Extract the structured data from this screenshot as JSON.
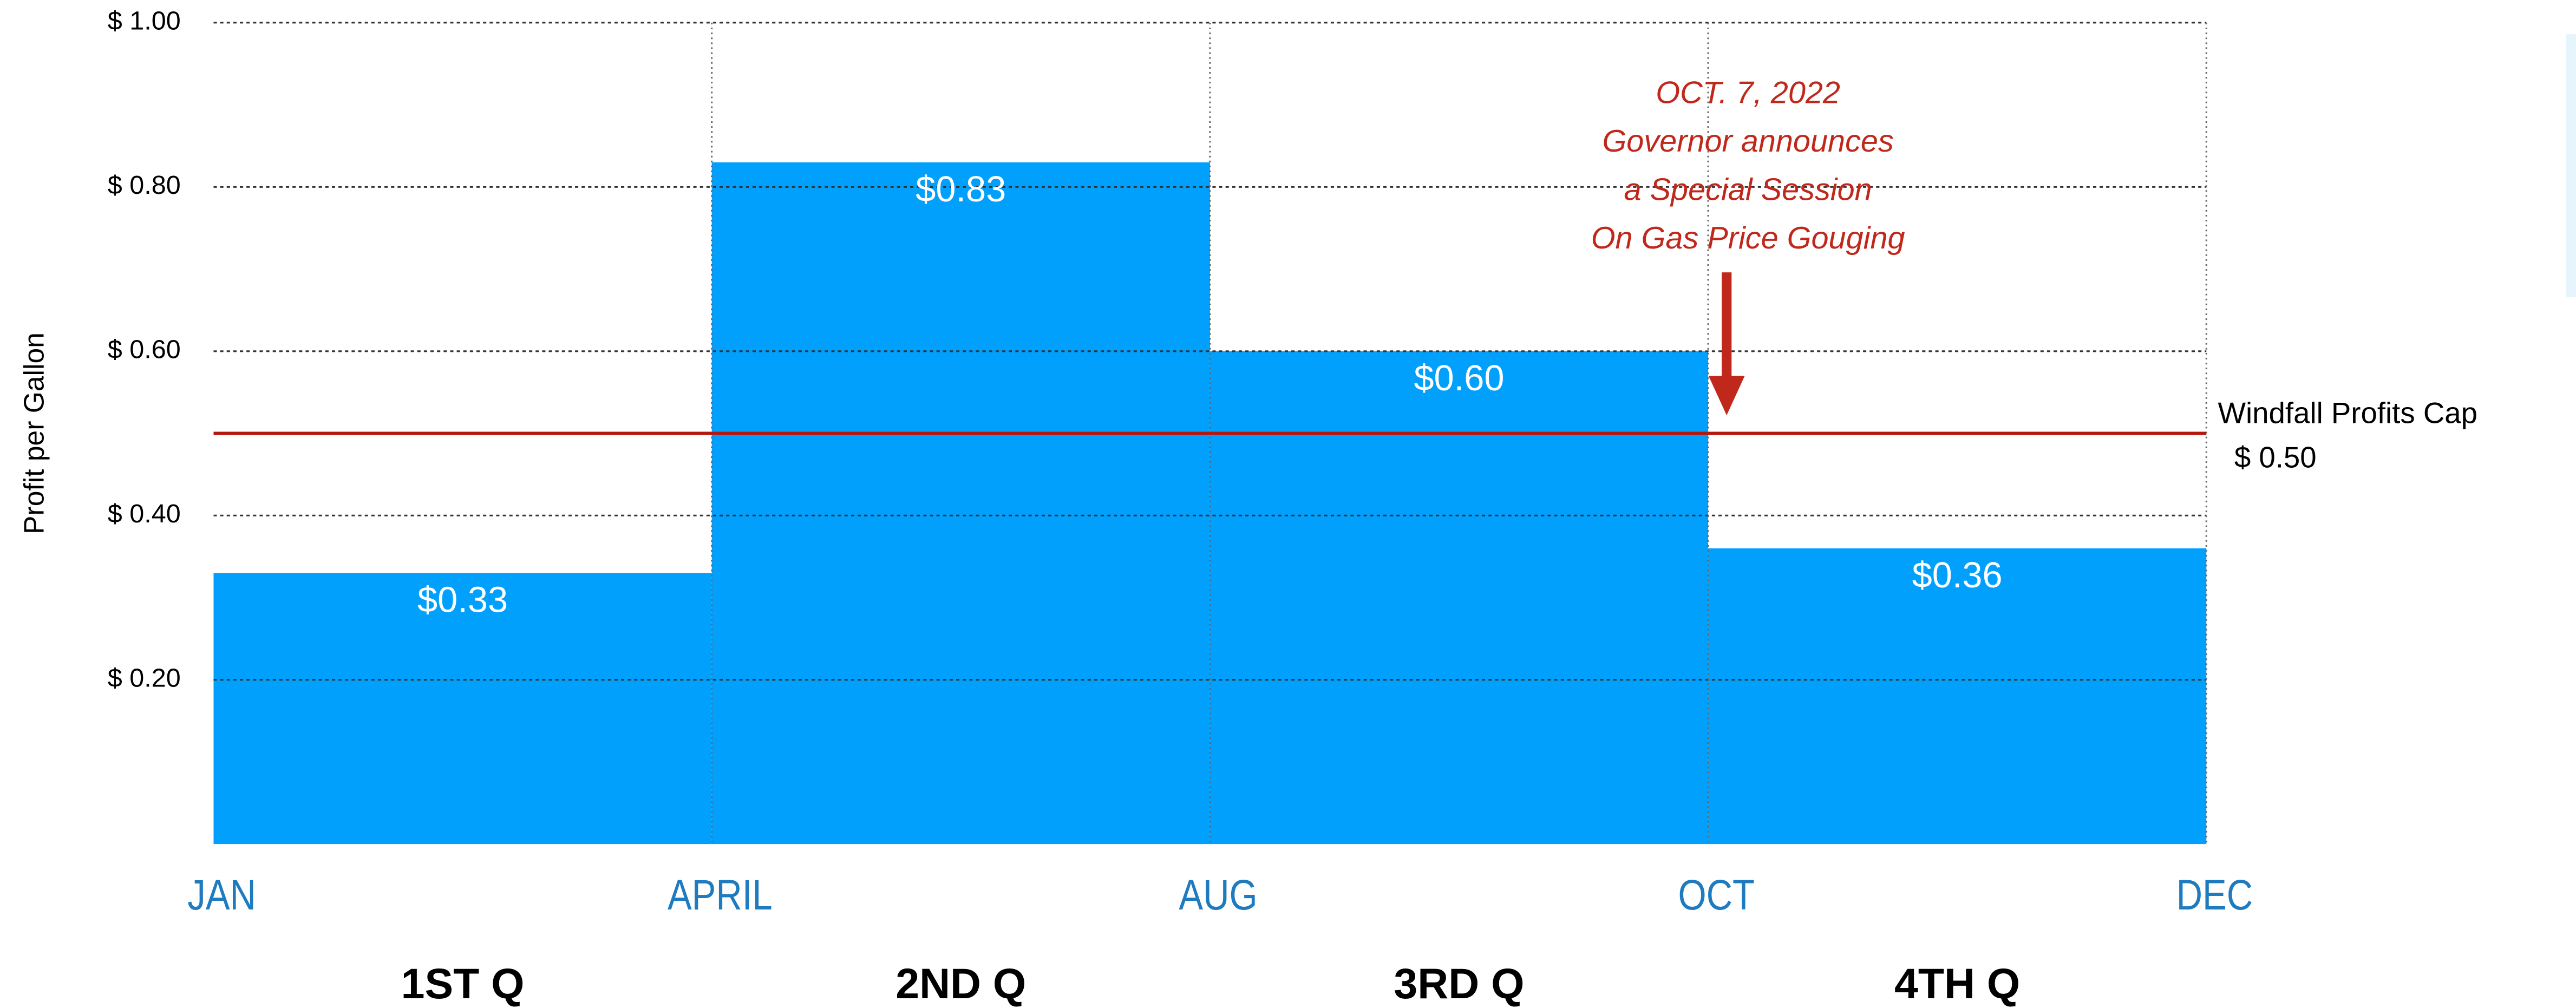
{
  "chart_data": {
    "type": "bar",
    "y_label": "Profit per Gallon",
    "categories": [
      "1ST Q",
      "2ND Q",
      "3RD Q",
      "4TH Q"
    ],
    "edge_labels": [
      "JAN",
      "APRIL",
      "AUG",
      "OCT",
      "DEC"
    ],
    "values": [
      0.33,
      0.83,
      0.6,
      0.36
    ],
    "value_labels": [
      "$0.33",
      "$0.83",
      "$0.60",
      "$0.36"
    ],
    "color": "#00a0fc",
    "ylim": [
      0,
      1
    ],
    "yticks": [
      {
        "value": 0.2,
        "label": "$ 0.20"
      },
      {
        "value": 0.4,
        "label": "$ 0.40"
      },
      {
        "value": 0.6,
        "label": "$ 0.60"
      },
      {
        "value": 0.8,
        "label": "$ 0.80"
      },
      {
        "value": 1.0,
        "label": "$ 1.00"
      }
    ],
    "grid": true,
    "reference_line": {
      "label": "Windfall Profits Cap",
      "value": 0.5,
      "value_label": "$ 0.50",
      "color": "#b5170f"
    },
    "annotation": {
      "lines": [
        "OCT. 7, 2022",
        "Governor announces",
        "a Special Session",
        "On Gas Price Gouging"
      ],
      "color": "#c0281b"
    }
  }
}
